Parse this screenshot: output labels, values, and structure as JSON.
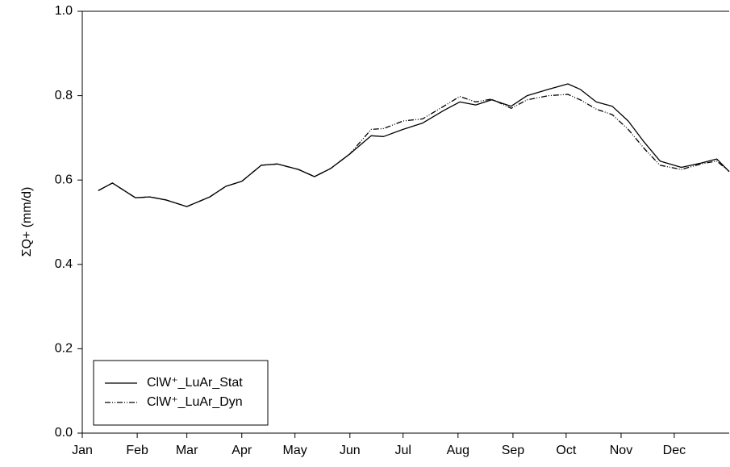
{
  "chart_data": {
    "type": "line",
    "ylabel": "ΣQ+ (mm/d)",
    "x": [
      9,
      17,
      30,
      38,
      47,
      59,
      72,
      81,
      90,
      101,
      110,
      122,
      131,
      140,
      151,
      163,
      170,
      181,
      192,
      204,
      213,
      222,
      231,
      242,
      251,
      263,
      274,
      281,
      290,
      299,
      308,
      317,
      326,
      338,
      349,
      358,
      365
    ],
    "series": [
      {
        "name": "ClW⁺_LuAr_Stat",
        "color": "#000000",
        "dash": "none",
        "values": [
          0.575,
          0.593,
          0.558,
          0.56,
          0.553,
          0.537,
          0.56,
          0.585,
          0.597,
          0.635,
          0.638,
          0.625,
          0.608,
          0.627,
          0.662,
          0.705,
          0.703,
          0.72,
          0.735,
          0.765,
          0.785,
          0.778,
          0.79,
          0.775,
          0.8,
          0.815,
          0.828,
          0.815,
          0.785,
          0.775,
          0.74,
          0.69,
          0.645,
          0.63,
          0.64,
          0.65,
          0.62
        ]
      },
      {
        "name": "ClW⁺_LuAr_Dyn",
        "color": "#000000",
        "dash": "7 2 1 2 1 2",
        "values": [
          0.575,
          0.593,
          0.558,
          0.56,
          0.553,
          0.537,
          0.56,
          0.585,
          0.597,
          0.635,
          0.638,
          0.625,
          0.608,
          0.627,
          0.662,
          0.72,
          0.722,
          0.74,
          0.745,
          0.775,
          0.798,
          0.785,
          0.792,
          0.77,
          0.79,
          0.8,
          0.803,
          0.79,
          0.768,
          0.755,
          0.72,
          0.675,
          0.635,
          0.625,
          0.638,
          0.645,
          0.62
        ]
      }
    ],
    "xlim": [
      0,
      365
    ],
    "xticks": [
      {
        "value": 0,
        "label": "Jan"
      },
      {
        "value": 31,
        "label": "Feb"
      },
      {
        "value": 59,
        "label": "Mar"
      },
      {
        "value": 90,
        "label": "Apr"
      },
      {
        "value": 120,
        "label": "May"
      },
      {
        "value": 151,
        "label": "Jun"
      },
      {
        "value": 181,
        "label": "Jul"
      },
      {
        "value": 212,
        "label": "Aug"
      },
      {
        "value": 243,
        "label": "Sep"
      },
      {
        "value": 273,
        "label": "Oct"
      },
      {
        "value": 304,
        "label": "Nov"
      },
      {
        "value": 334,
        "label": "Dec"
      }
    ],
    "ylim": [
      0,
      1
    ],
    "yticks": [
      {
        "value": 0,
        "label": "0.0"
      },
      0.2,
      0.4,
      0.6,
      0.8,
      {
        "value": 1,
        "label": "1.0"
      }
    ],
    "legend": "lower-left"
  }
}
